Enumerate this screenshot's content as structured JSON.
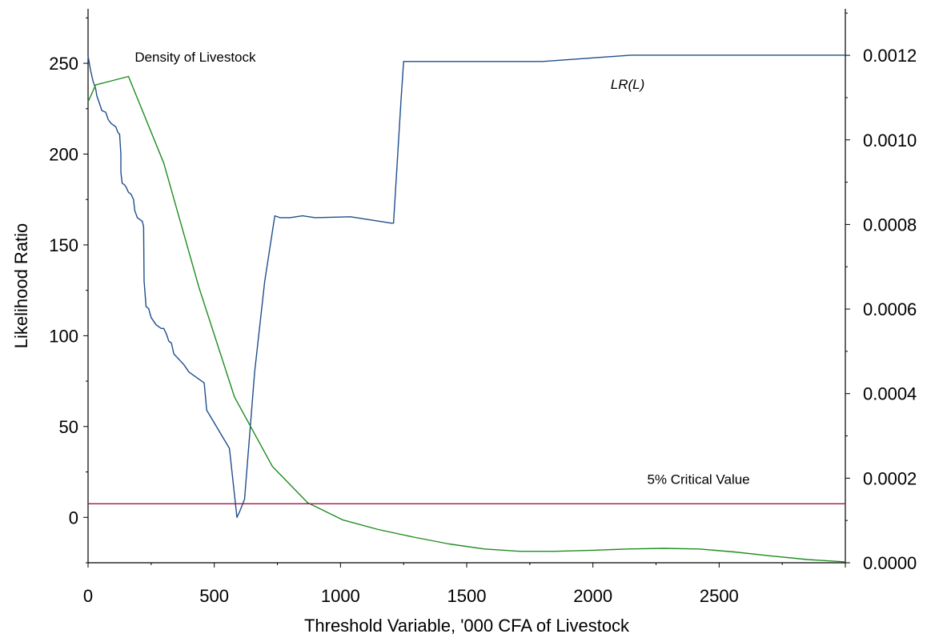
{
  "chart_data": {
    "type": "line",
    "title": "",
    "xlabel": "Threshold Variable, '000 CFA of Livestock",
    "ylabel": "Likelihood Ratio",
    "y2label": "",
    "xlim": [
      0,
      3000
    ],
    "ylim": [
      -25,
      280
    ],
    "y2lim": [
      0,
      0.00131
    ],
    "x_ticks": [
      0,
      500,
      1000,
      1500,
      2000,
      2500
    ],
    "x_tick_labels": [
      "0",
      "500",
      "1000",
      "1500",
      "2000",
      "2500"
    ],
    "y_ticks": [
      0,
      50,
      100,
      150,
      200,
      250
    ],
    "y_tick_labels": [
      "0",
      "50",
      "100",
      "150",
      "200",
      "250"
    ],
    "y2_ticks": [
      0,
      0.0002,
      0.0004,
      0.0006,
      0.0008,
      0.001,
      0.0012
    ],
    "y2_tick_labels": [
      "0.0000",
      "0.0002",
      "0.0004",
      "0.0006",
      "0.0008",
      "0.0010",
      "0.0012"
    ],
    "grid": false,
    "annotations": [
      {
        "text": "Density of Livestock",
        "series": "density"
      },
      {
        "text": "LR(L)",
        "series": "lr"
      },
      {
        "text": "5% Critical Value",
        "series": "critical"
      }
    ],
    "series": [
      {
        "key": "lr",
        "color": "#1f4e8c",
        "axis": "left",
        "x": [
          0,
          5,
          10,
          20,
          30,
          35,
          40,
          45,
          55,
          70,
          80,
          90,
          100,
          110,
          118,
          125,
          130,
          130,
          135,
          145,
          150,
          160,
          170,
          180,
          185,
          195,
          205,
          215,
          220,
          222,
          230,
          240,
          250,
          270,
          290,
          300,
          310,
          320,
          330,
          340,
          360,
          380,
          400,
          420,
          450,
          460,
          470,
          560,
          590,
          600,
          620,
          660,
          700,
          740,
          760,
          800,
          850,
          900,
          1040,
          1200,
          1210,
          1240,
          1250,
          1800,
          2000,
          2150,
          3000
        ],
        "y": [
          254,
          250,
          246,
          240,
          236,
          232,
          230,
          228,
          224,
          223,
          219,
          217,
          216,
          215,
          212,
          211,
          200,
          190,
          184,
          183,
          182,
          179,
          178,
          175,
          169,
          165,
          164,
          163,
          160,
          130,
          116,
          115,
          110,
          106,
          104,
          104,
          101,
          97,
          96,
          90,
          87,
          84,
          80,
          78,
          75,
          74,
          59,
          38,
          0,
          3,
          10,
          80,
          130,
          166,
          165,
          165,
          166,
          165,
          165.5,
          162,
          162,
          230,
          251,
          251,
          253,
          254.5,
          254.5
        ]
      },
      {
        "key": "density",
        "color": "#1f8c1f",
        "axis": "right",
        "x": [
          0,
          30,
          160,
          300,
          440,
          580,
          730,
          870,
          1010,
          1150,
          1290,
          1430,
          1570,
          1710,
          1850,
          2000,
          2140,
          2280,
          2420,
          2560,
          2700,
          2850,
          3000
        ],
        "y": [
          0.00109,
          0.00113,
          0.00115,
          0.000945,
          0.00065,
          0.000392,
          0.000228,
          0.000142,
          0.000101,
          7.85e-05,
          6.05e-05,
          4.45e-05,
          3.25e-05,
          2.7e-05,
          2.7e-05,
          2.95e-05,
          3.25e-05,
          3.4e-05,
          3.25e-05,
          2.55e-05,
          1.65e-05,
          7.5e-06,
          2e-06
        ]
      },
      {
        "key": "critical",
        "color": "#a0174a",
        "axis": "left",
        "x": [
          0,
          3000
        ],
        "y": [
          7.5,
          7.5
        ]
      }
    ]
  }
}
